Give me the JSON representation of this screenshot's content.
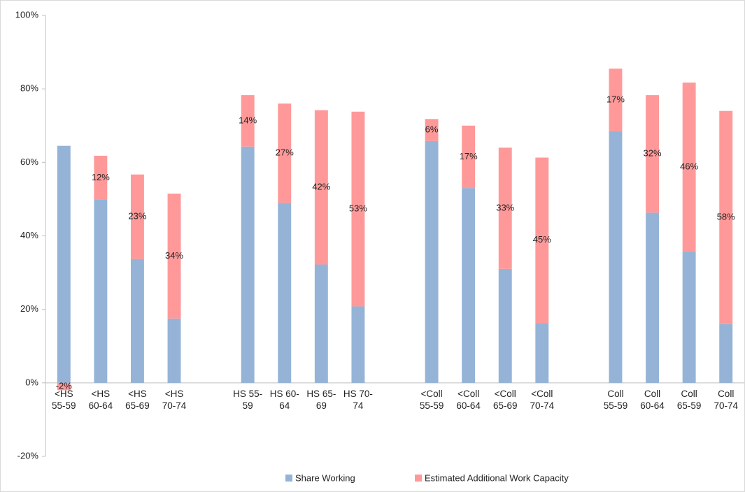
{
  "chart_data": {
    "type": "stacked_bar",
    "categories": [
      "<HS 55-59",
      "<HS 60-64",
      "<HS 65-69",
      "<HS 70-74",
      null,
      "HS 55-59",
      "HS 60-64",
      "HS 65-69",
      "HS 70-74",
      null,
      "<Coll 55-59",
      "<Coll 60-64",
      "<Coll 65-69",
      "<Coll 70-74",
      null,
      "Coll 55-59",
      "Coll 60-64",
      "Coll 65-59",
      "Coll 70-74"
    ],
    "series": [
      {
        "name": "Share Working",
        "color": "#95b3d7",
        "values": [
          64.5,
          49.8,
          33.7,
          17.5,
          null,
          64.3,
          49,
          32.2,
          20.8,
          null,
          65.8,
          53,
          31,
          16.3,
          null,
          68.5,
          46.3,
          35.7,
          16
        ]
      },
      {
        "name": "Estimated Additional Work Capacity",
        "color": "#ff9999",
        "values": [
          -2,
          12,
          23,
          34,
          null,
          14,
          27,
          42,
          53,
          null,
          6,
          17,
          33,
          45,
          null,
          17,
          32,
          46,
          58
        ],
        "value_labels": [
          "-2%",
          "12%",
          "23%",
          "34%",
          null,
          "14%",
          "27%",
          "42%",
          "53%",
          null,
          "6%",
          "17%",
          "33%",
          "45%",
          null,
          "17%",
          "32%",
          "46%",
          "58%"
        ]
      }
    ],
    "ylim": [
      -20,
      100
    ],
    "yticks": [
      {
        "value": -20,
        "label": "-20%"
      },
      {
        "value": 0,
        "label": "0%"
      },
      {
        "value": 20,
        "label": "20%"
      },
      {
        "value": 40,
        "label": "40%"
      },
      {
        "value": 60,
        "label": "60%"
      },
      {
        "value": 80,
        "label": "80%"
      },
      {
        "value": 100,
        "label": "100%"
      }
    ],
    "legend": "bottom"
  }
}
